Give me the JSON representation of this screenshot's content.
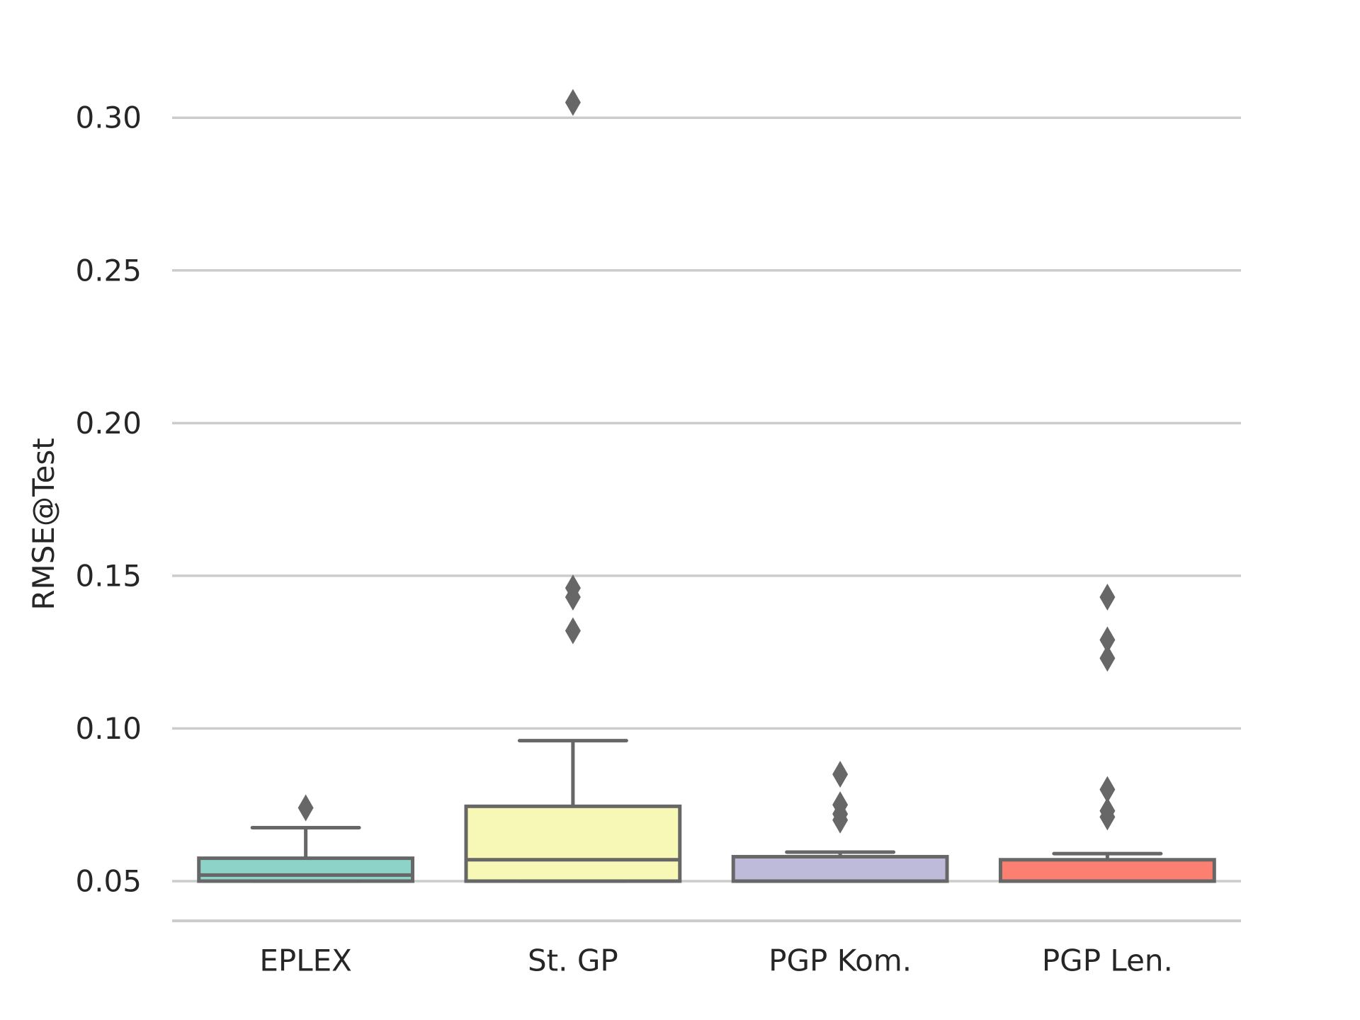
{
  "chart_data": {
    "type": "box",
    "title": "",
    "xlabel": "",
    "ylabel": "RMSE@Test",
    "ylim": [
      0.037,
      0.32
    ],
    "yticks": [
      0.05,
      0.1,
      0.15,
      0.2,
      0.25,
      0.3
    ],
    "ytick_labels": [
      "0.05",
      "0.10",
      "0.15",
      "0.20",
      "0.25",
      "0.30"
    ],
    "grid": "horizontal",
    "categories": [
      "EPLEX",
      "St. GP",
      "PGP Kom.",
      "PGP Len."
    ],
    "colors": [
      "#8dd3c7",
      "#f7f7b6",
      "#bebada",
      "#fb8072"
    ],
    "edge_color": "#676767",
    "grid_color": "#cccccc",
    "boxes": [
      {
        "category": "EPLEX",
        "whisker_low": 0.05,
        "q1": 0.05,
        "median": 0.052,
        "q3": 0.0575,
        "whisker_high": 0.0675,
        "fliers": [
          0.074
        ]
      },
      {
        "category": "St. GP",
        "whisker_low": 0.05,
        "q1": 0.05,
        "median": 0.057,
        "q3": 0.0745,
        "whisker_high": 0.096,
        "fliers": [
          0.305,
          0.146,
          0.143,
          0.132
        ]
      },
      {
        "category": "PGP Kom.",
        "whisker_low": 0.05,
        "q1": 0.05,
        "median": 0.05,
        "q3": 0.058,
        "whisker_high": 0.0595,
        "fliers": [
          0.085,
          0.075,
          0.072,
          0.07
        ]
      },
      {
        "category": "PGP Len.",
        "whisker_low": 0.05,
        "q1": 0.05,
        "median": 0.05,
        "q3": 0.057,
        "whisker_high": 0.059,
        "fliers": [
          0.143,
          0.129,
          0.123,
          0.08,
          0.073,
          0.071
        ]
      }
    ]
  }
}
